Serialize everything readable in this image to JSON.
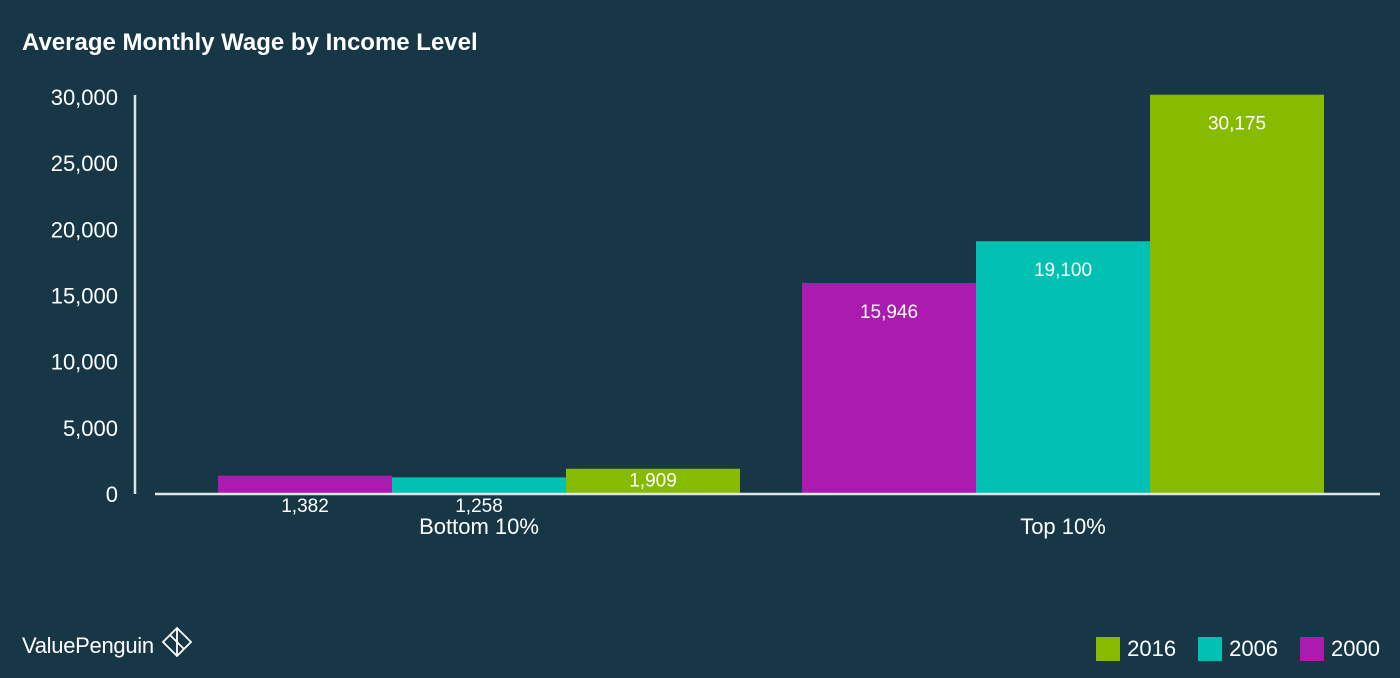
{
  "chart_data": {
    "type": "bar",
    "title": "Average Monthly Wage by Income Level",
    "categories": [
      "Bottom 10%",
      "Top 10%"
    ],
    "series": [
      {
        "name": "2000",
        "color": "#ab1bb0",
        "values": [
          1382,
          15946
        ],
        "labels": [
          "1,382",
          "15,946"
        ]
      },
      {
        "name": "2006",
        "color": "#00c1b2",
        "values": [
          1258,
          19100
        ],
        "labels": [
          "1,258",
          "19,100"
        ]
      },
      {
        "name": "2016",
        "color": "#86bb00",
        "values": [
          1909,
          30175
        ],
        "labels": [
          "1,909",
          "30,175"
        ]
      }
    ],
    "ylim": [
      0,
      30000
    ],
    "yticks": [
      0,
      5000,
      10000,
      15000,
      20000,
      25000,
      30000
    ],
    "ytick_labels": [
      "0",
      "5,000",
      "10,000",
      "15,000",
      "20,000",
      "25,000",
      "30,000"
    ],
    "xlabel": "",
    "ylabel": "",
    "grid": false,
    "legend_position": "bottom-right",
    "legend_order": [
      "2016",
      "2006",
      "2000"
    ]
  },
  "brand": {
    "name": "ValuePenguin",
    "logo_icon": "penguin-diamond-logo"
  },
  "colors": {
    "background": "#173746",
    "axis": "#dfe6e8",
    "text": "#ffffff",
    "label_dark": "#173746"
  }
}
